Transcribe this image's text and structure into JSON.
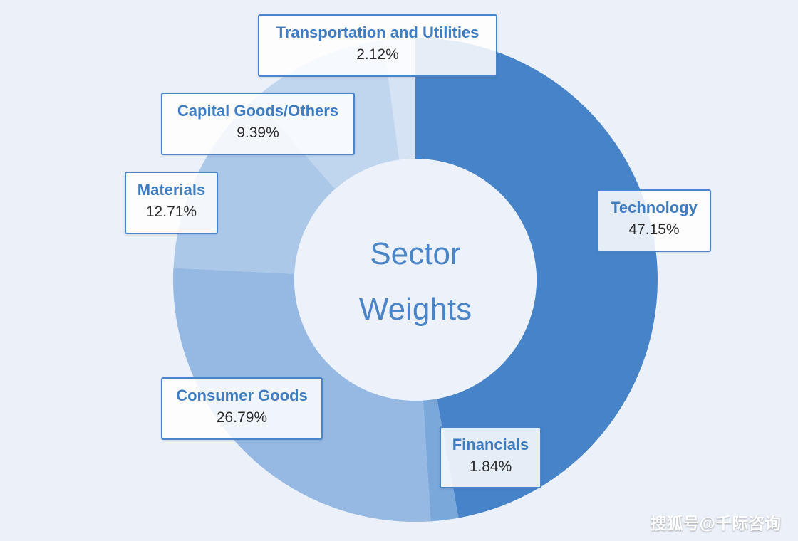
{
  "chart_data": {
    "type": "pie",
    "title": "Sector Weights",
    "slices": [
      {
        "label": "Technology",
        "value": 47.15,
        "display": "47.15%",
        "color": "#4683c8"
      },
      {
        "label": "Financials",
        "value": 1.84,
        "display": "1.84%",
        "color": "#7ba8db"
      },
      {
        "label": "Consumer Goods",
        "value": 26.79,
        "display": "26.79%",
        "color": "#95b9e2"
      },
      {
        "label": "Materials",
        "value": 12.71,
        "display": "12.71%",
        "color": "#acc8e9"
      },
      {
        "label": "Capital Goods/Others",
        "value": 9.39,
        "display": "9.39%",
        "color": "#c0d5ee"
      },
      {
        "label": "Transportation and Utilities",
        "value": 2.12,
        "display": "2.12%",
        "color": "#d6e3f4"
      }
    ],
    "start_angle": "12 o'clock",
    "direction": "clockwise",
    "hole": "donut"
  },
  "title_lines": [
    "Sector",
    "Weights"
  ],
  "watermark": "搜狐号@千际咨询"
}
